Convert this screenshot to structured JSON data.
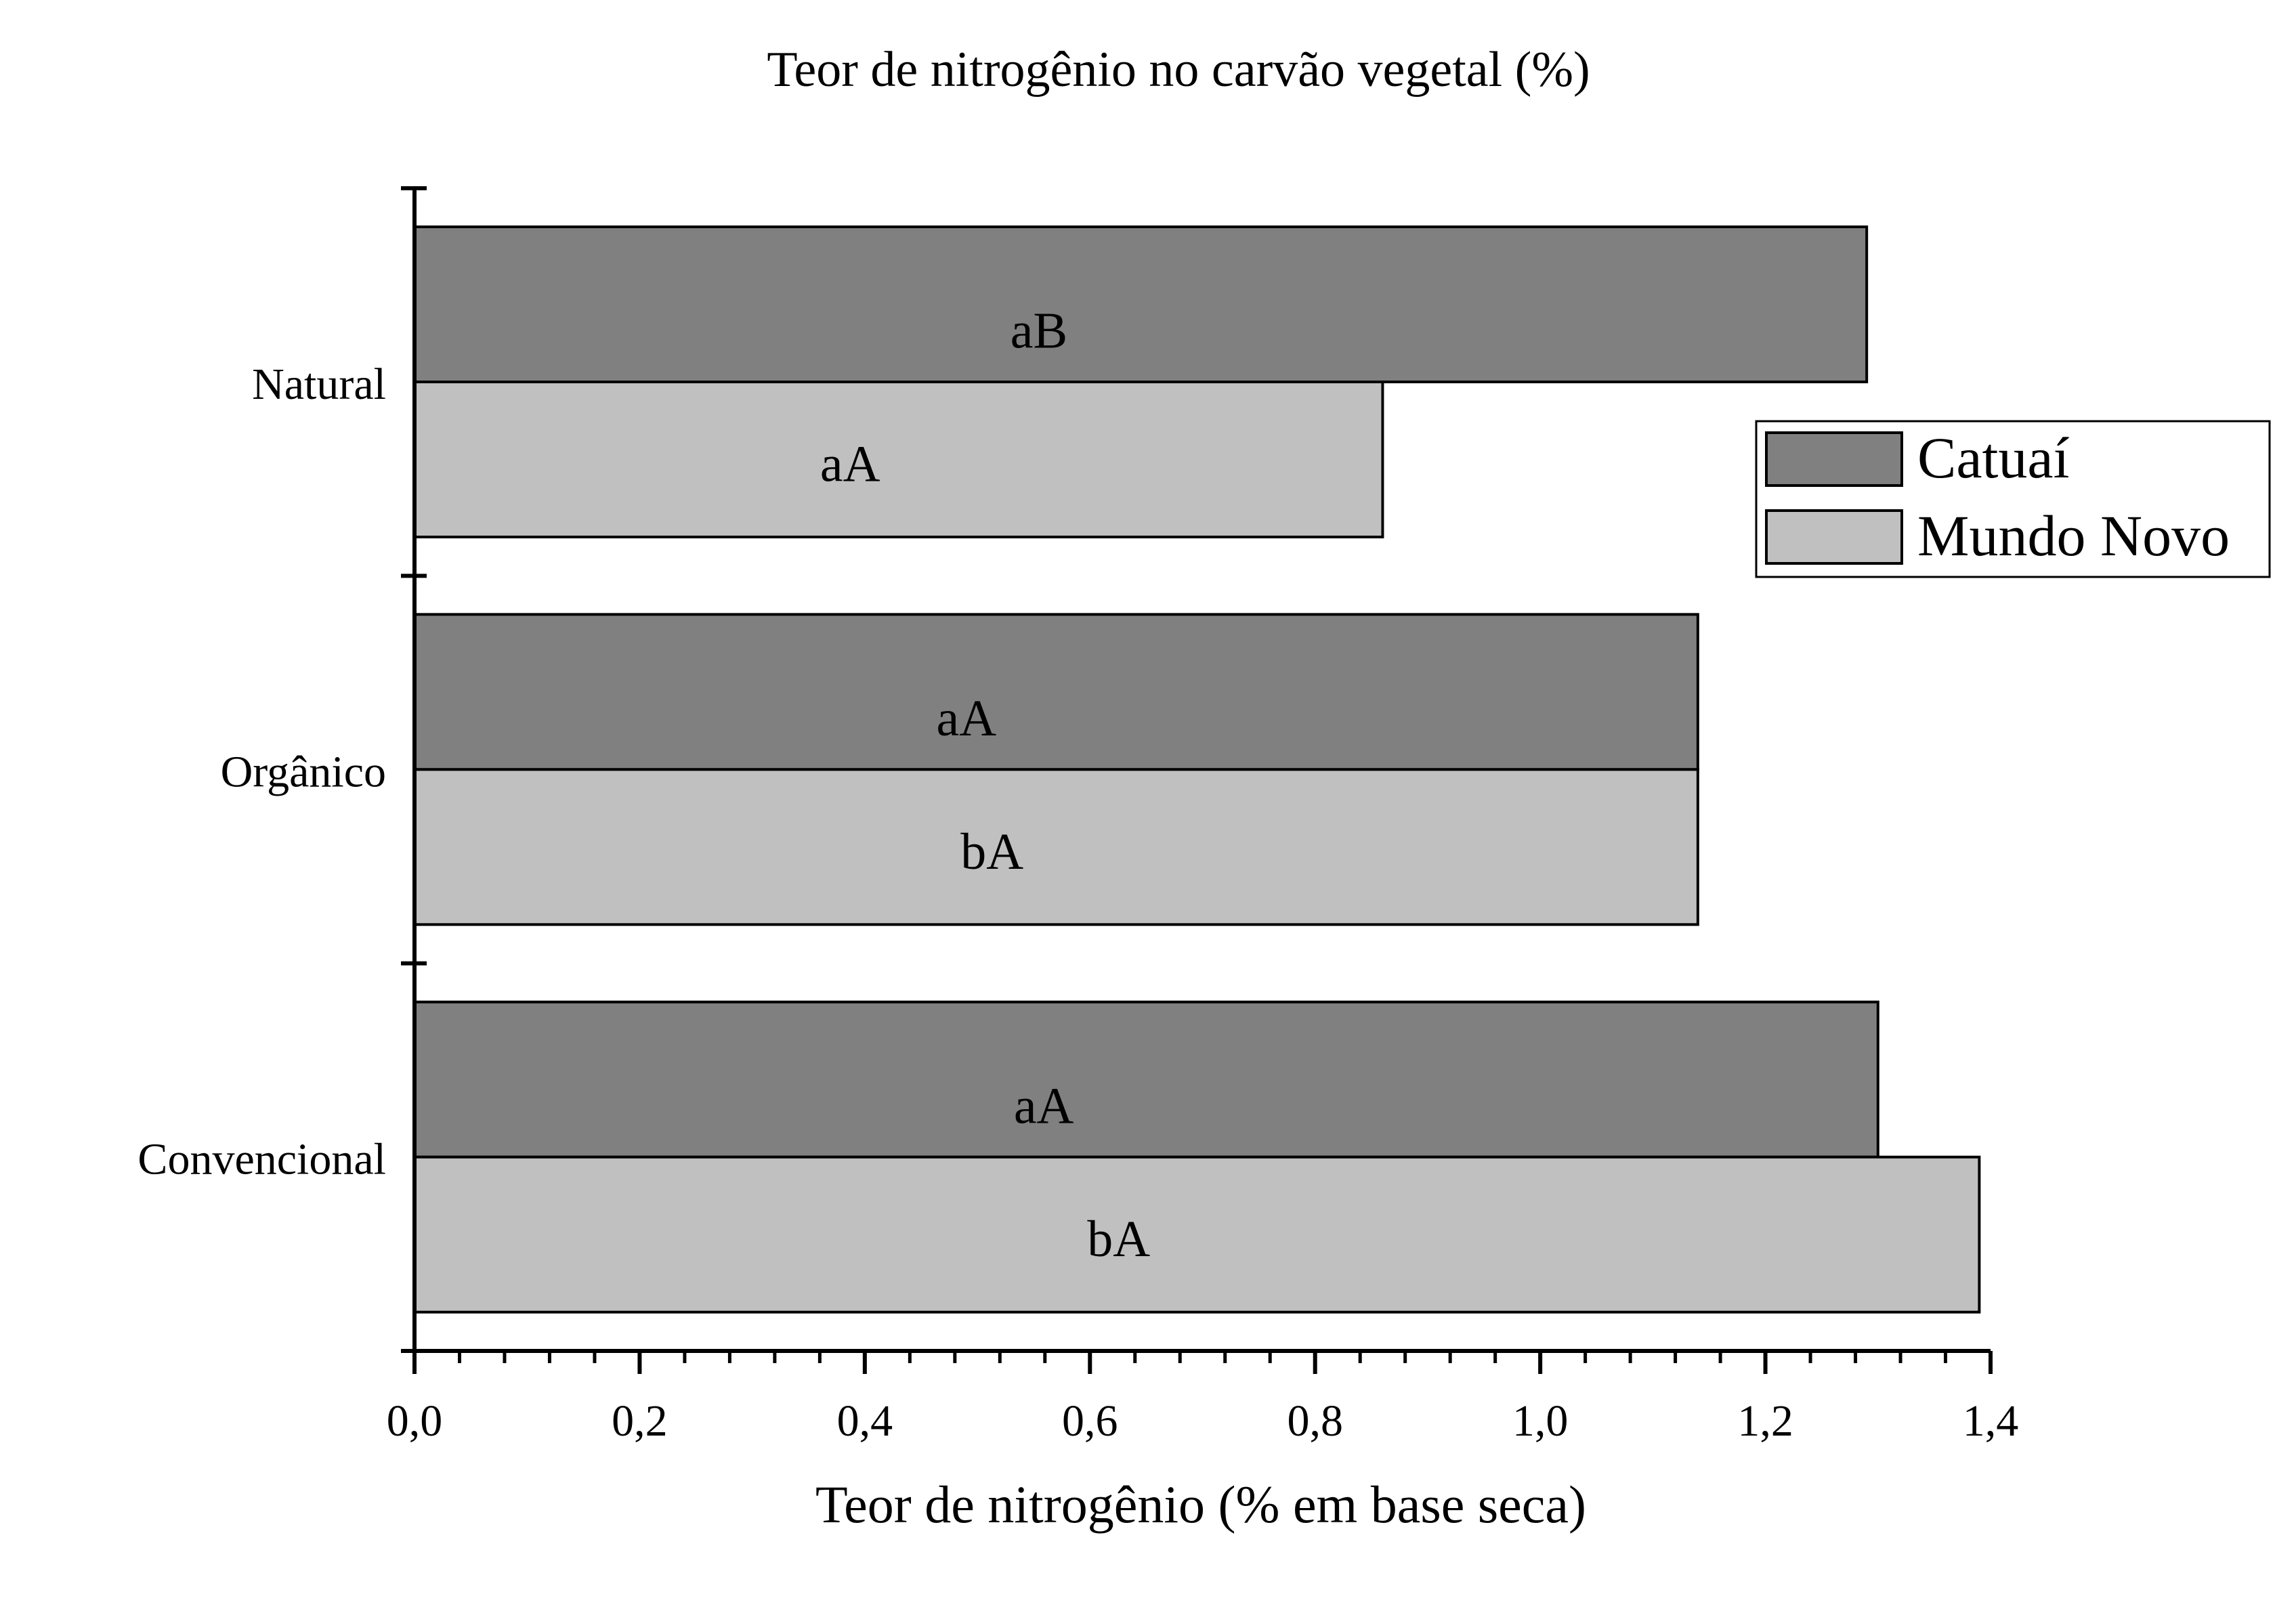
{
  "chart_data": {
    "type": "bar",
    "orientation": "horizontal",
    "title": "Teor de nitrogênio no carvão vegetal (%)",
    "xlabel": "Teor de nitrogênio (% em base seca)",
    "ylabel": "",
    "xlim": [
      0,
      1.4
    ],
    "x_ticks": [
      "0,0",
      "0,2",
      "0,4",
      "0,6",
      "0,8",
      "1,0",
      "1,2",
      "1,4"
    ],
    "categories": [
      "Natural",
      "Orgânico",
      "Convencional"
    ],
    "series": [
      {
        "name": "Catuaí",
        "color": "#808080",
        "values": [
          1.29,
          1.14,
          1.3
        ],
        "labels": [
          "aB",
          "aA",
          "aA"
        ]
      },
      {
        "name": "Mundo Novo",
        "color": "#c0c0c0",
        "values": [
          0.86,
          1.14,
          1.39
        ],
        "labels": [
          "aA",
          "bA",
          "bA"
        ]
      }
    ],
    "grid": false,
    "legend_position": "top-right"
  }
}
